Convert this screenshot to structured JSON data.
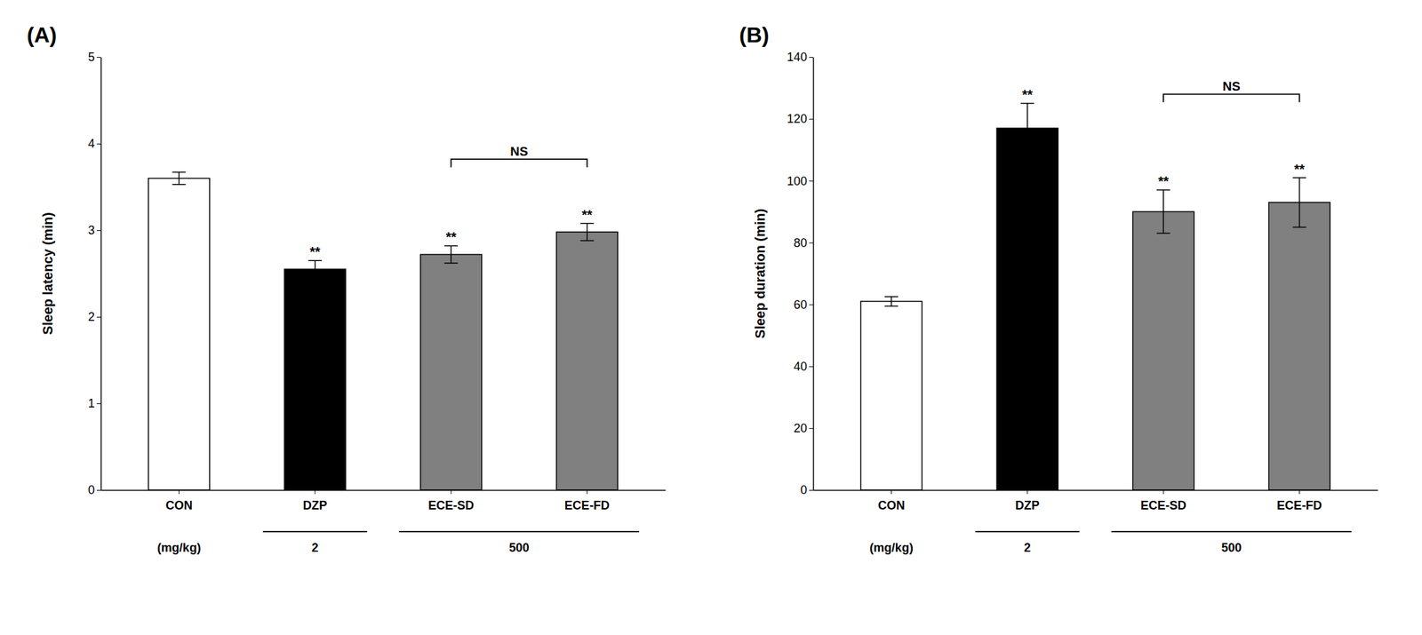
{
  "chart_data": [
    {
      "type": "bar",
      "title": "(A)",
      "ylabel": "Sleep latency (min)",
      "xlabel": "(mg/kg)",
      "categories": [
        "CON",
        "DZP",
        "ECE-SD",
        "ECE-FD"
      ],
      "values": [
        3.6,
        2.55,
        2.72,
        2.98
      ],
      "errors": [
        0.07,
        0.1,
        0.1,
        0.1
      ],
      "colors": [
        "#ffffff",
        "#000000",
        "#808080",
        "#808080"
      ],
      "ylim": [
        0,
        5
      ],
      "yticks": [
        0,
        1,
        2,
        3,
        4,
        5
      ],
      "annotations": [
        {
          "text": "**",
          "category": "DZP"
        },
        {
          "text": "**",
          "category": "ECE-SD"
        },
        {
          "text": "**",
          "category": "ECE-FD"
        }
      ],
      "bracket": {
        "text": "NS",
        "from": "ECE-SD",
        "to": "ECE-FD",
        "y": 3.82
      },
      "dose_groups": [
        {
          "text": "2",
          "from": "DZP",
          "to": "DZP"
        },
        {
          "text": "500",
          "from": "ECE-SD",
          "to": "ECE-FD"
        }
      ]
    },
    {
      "type": "bar",
      "title": "(B)",
      "ylabel": "Sleep duration (min)",
      "xlabel": "(mg/kg)",
      "categories": [
        "CON",
        "DZP",
        "ECE-SD",
        "ECE-FD"
      ],
      "values": [
        61,
        117,
        90,
        93
      ],
      "errors": [
        1.5,
        8,
        7,
        8
      ],
      "colors": [
        "#ffffff",
        "#000000",
        "#808080",
        "#808080"
      ],
      "ylim": [
        0,
        140
      ],
      "yticks": [
        0,
        20,
        40,
        60,
        80,
        100,
        120,
        140
      ],
      "annotations": [
        {
          "text": "**",
          "category": "DZP"
        },
        {
          "text": "**",
          "category": "ECE-SD"
        },
        {
          "text": "**",
          "category": "ECE-FD"
        }
      ],
      "bracket": {
        "text": "NS",
        "from": "ECE-SD",
        "to": "ECE-FD",
        "y": 128
      },
      "dose_groups": [
        {
          "text": "2",
          "from": "DZP",
          "to": "DZP"
        },
        {
          "text": "500",
          "from": "ECE-SD",
          "to": "ECE-FD"
        }
      ]
    }
  ]
}
